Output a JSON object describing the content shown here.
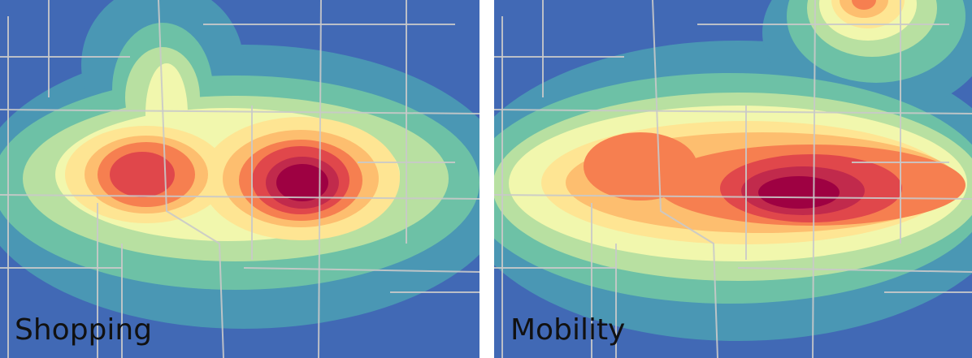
{
  "panels": [
    {
      "label": "Shopping"
    },
    {
      "label": "Mobility"
    }
  ]
}
